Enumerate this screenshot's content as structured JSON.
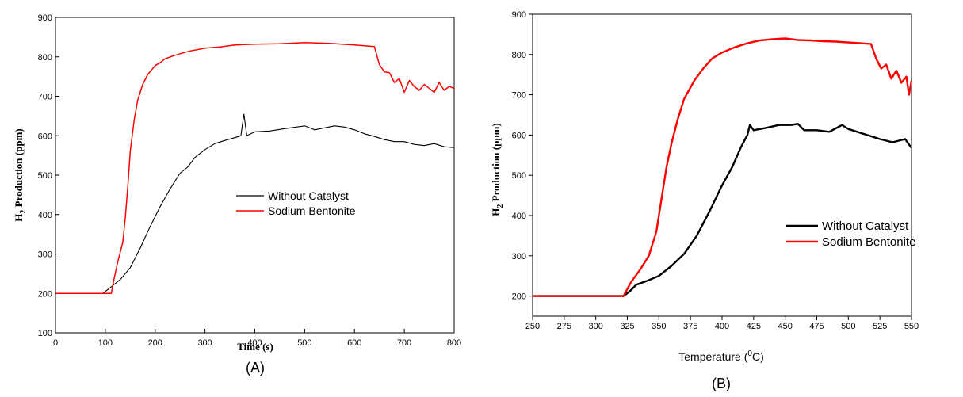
{
  "chart_data": [
    {
      "type": "line",
      "panel_label": "(A)",
      "xlabel": "Time (s)",
      "ylabel_sub": "2",
      "ylabel_main": "H",
      "ylabel_rest": " Production (ppm)",
      "xlim": [
        0,
        800
      ],
      "ylim": [
        100,
        900
      ],
      "x_ticks": [
        0,
        100,
        200,
        300,
        400,
        500,
        600,
        700,
        800
      ],
      "y_ticks": [
        100,
        200,
        300,
        400,
        500,
        600,
        700,
        800,
        900
      ],
      "legend_position": "center-right",
      "series": [
        {
          "name": "Without Catalyst",
          "color": "#000000",
          "x": [
            0,
            95,
            110,
            130,
            150,
            170,
            190,
            210,
            230,
            250,
            265,
            280,
            300,
            320,
            340,
            360,
            372,
            378,
            384,
            400,
            430,
            460,
            500,
            520,
            540,
            560,
            580,
            600,
            620,
            640,
            660,
            680,
            700,
            720,
            740,
            760,
            780,
            800
          ],
          "y": [
            200,
            200,
            215,
            235,
            265,
            315,
            370,
            420,
            465,
            505,
            520,
            545,
            565,
            580,
            588,
            595,
            600,
            655,
            600,
            610,
            612,
            618,
            625,
            615,
            620,
            625,
            622,
            615,
            605,
            598,
            590,
            585,
            585,
            578,
            575,
            580,
            572,
            570
          ]
        },
        {
          "name": "Sodium Bentonite",
          "color": "#ff0000",
          "x": [
            0,
            112,
            118,
            125,
            135,
            140,
            145,
            150,
            158,
            165,
            175,
            185,
            200,
            210,
            220,
            235,
            250,
            270,
            300,
            330,
            360,
            400,
            450,
            500,
            550,
            600,
            640,
            650,
            660,
            670,
            680,
            690,
            700,
            710,
            720,
            730,
            740,
            750,
            760,
            770,
            780,
            790,
            800
          ],
          "y": [
            200,
            200,
            240,
            280,
            330,
            390,
            470,
            560,
            640,
            690,
            730,
            755,
            778,
            785,
            795,
            802,
            808,
            815,
            822,
            825,
            830,
            832,
            833,
            836,
            834,
            830,
            826,
            780,
            762,
            760,
            735,
            745,
            710,
            740,
            725,
            715,
            730,
            720,
            710,
            735,
            715,
            725,
            720
          ]
        }
      ]
    },
    {
      "type": "line",
      "panel_label": "(B)",
      "xlabel_main": "Temperature (",
      "xlabel_sup": "0",
      "xlabel_rest": "C)",
      "ylabel_sub": "2",
      "ylabel_main": "H",
      "ylabel_rest": " Production (ppm)",
      "xlim": [
        250,
        550
      ],
      "ylim": [
        150,
        900
      ],
      "x_ticks": [
        250,
        275,
        300,
        325,
        350,
        375,
        400,
        425,
        450,
        475,
        500,
        525,
        550
      ],
      "y_ticks": [
        200,
        300,
        400,
        500,
        600,
        700,
        800,
        900
      ],
      "legend_position": "center-right",
      "series": [
        {
          "name": "Without Catalyst",
          "color": "#000000",
          "x": [
            250,
            322,
            327,
            332,
            340,
            350,
            360,
            370,
            380,
            390,
            400,
            408,
            415,
            420,
            422,
            425,
            435,
            445,
            455,
            460,
            465,
            475,
            485,
            495,
            500,
            505,
            515,
            525,
            535,
            545,
            550
          ],
          "y": [
            200,
            200,
            212,
            228,
            237,
            250,
            275,
            305,
            350,
            410,
            475,
            520,
            570,
            600,
            625,
            612,
            618,
            625,
            625,
            628,
            612,
            612,
            608,
            625,
            615,
            610,
            600,
            590,
            582,
            590,
            568
          ]
        },
        {
          "name": "Sodium Bentonite",
          "color": "#ff0000",
          "x": [
            250,
            322,
            328,
            335,
            342,
            348,
            352,
            356,
            360,
            365,
            370,
            378,
            385,
            392,
            400,
            410,
            420,
            430,
            440,
            450,
            460,
            470,
            480,
            490,
            500,
            510,
            518,
            522,
            526,
            530,
            534,
            538,
            542,
            546,
            548,
            550
          ],
          "y": [
            200,
            200,
            235,
            265,
            300,
            360,
            440,
            520,
            580,
            640,
            690,
            735,
            765,
            790,
            805,
            818,
            828,
            835,
            838,
            840,
            836,
            835,
            833,
            832,
            830,
            828,
            826,
            790,
            765,
            775,
            740,
            760,
            730,
            745,
            700,
            735
          ]
        }
      ]
    }
  ]
}
